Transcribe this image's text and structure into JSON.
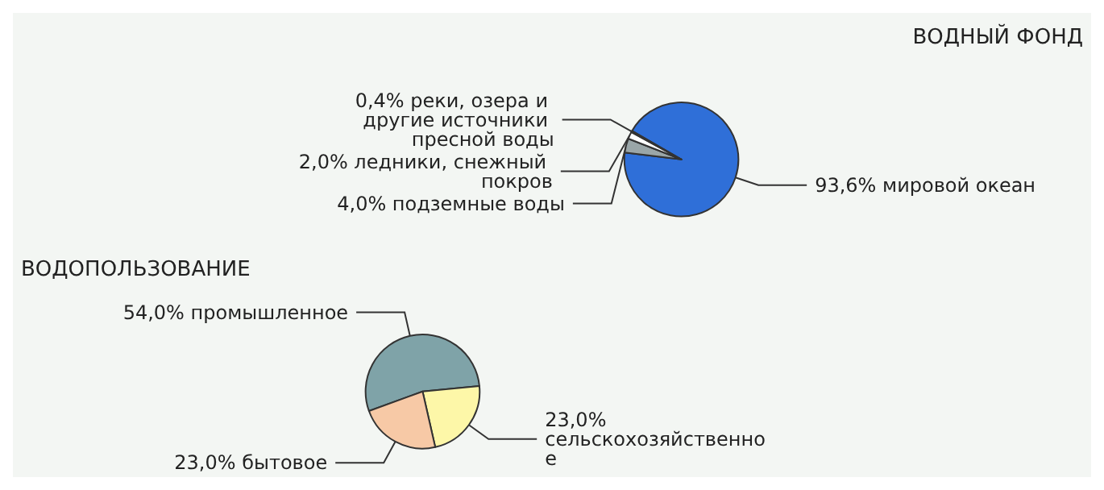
{
  "chart_data": [
    {
      "type": "pie",
      "title": "ВОДНЫЙ ФОНД",
      "categories": [
        "мировой океан",
        "подземные воды",
        "ледники, снежный покров",
        "реки, озера и другие источники пресной воды"
      ],
      "values": [
        93.6,
        4.0,
        2.0,
        0.4
      ],
      "colors": [
        "#2f6fd8",
        "#9aa6a8",
        "#ffffff",
        "#c8cccc"
      ],
      "value_labels": [
        "93,6%",
        "4,0%",
        "2,0%",
        "0,4%"
      ]
    },
    {
      "type": "pie",
      "title": "ВОДОПОЛЬЗОВАНИЕ",
      "categories": [
        "промышленное",
        "сельскохозяйственное",
        "бытовое"
      ],
      "values": [
        54.0,
        23.0,
        23.0
      ],
      "colors": [
        "#7fa3a8",
        "#fdf7a8",
        "#f7c9a6"
      ],
      "value_labels": [
        "54,0%",
        "23,0%",
        "23,0%"
      ]
    }
  ]
}
